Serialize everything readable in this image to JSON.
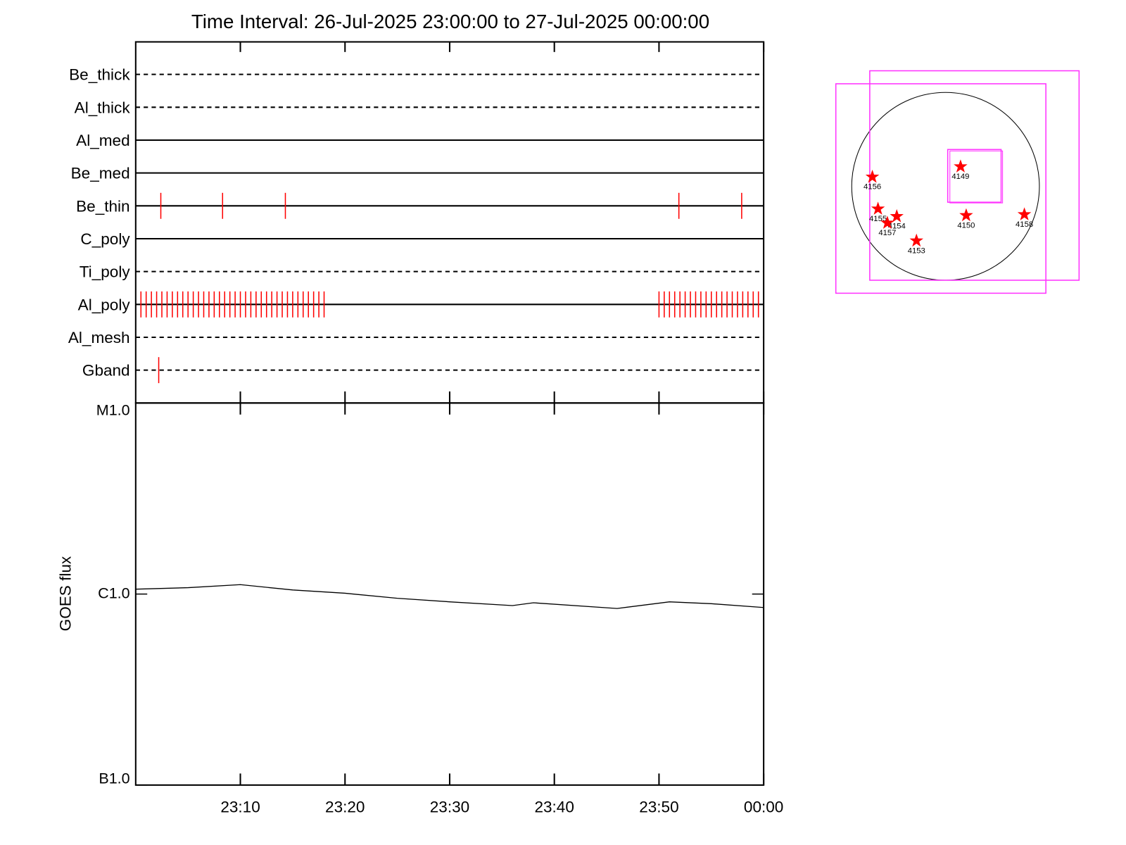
{
  "chart_data": [
    {
      "type": "event",
      "title": "Time Interval: 26-Jul-2025 23:00:00 to 27-Jul-2025 00:00:00",
      "xlim": [
        "23:00",
        "00:00"
      ],
      "event_color": "#ff0000",
      "filters": [
        {
          "name": "Be_thick",
          "line": "dashed",
          "events": []
        },
        {
          "name": "Al_thick",
          "line": "dashed",
          "events": []
        },
        {
          "name": "Al_med",
          "line": "solid",
          "events": []
        },
        {
          "name": "Be_med",
          "line": "solid",
          "events": []
        },
        {
          "name": "Be_thin",
          "line": "solid",
          "events": [
            "23:02:24",
            "23:08:18",
            "23:14:18",
            "23:51:54",
            "23:57:54"
          ]
        },
        {
          "name": "C_poly",
          "line": "solid",
          "events": []
        },
        {
          "name": "Ti_poly",
          "line": "dashed",
          "events": []
        },
        {
          "name": "Al_poly",
          "line": "solid",
          "events": [
            "23:00:30",
            "23:01:00",
            "23:01:30",
            "23:02:00",
            "23:02:30",
            "23:03:00",
            "23:03:30",
            "23:04:00",
            "23:04:30",
            "23:05:00",
            "23:05:30",
            "23:06:00",
            "23:06:30",
            "23:07:00",
            "23:07:30",
            "23:08:00",
            "23:08:30",
            "23:09:00",
            "23:09:30",
            "23:10:00",
            "23:10:30",
            "23:11:00",
            "23:11:30",
            "23:12:00",
            "23:12:30",
            "23:13:00",
            "23:13:30",
            "23:14:00",
            "23:14:30",
            "23:15:00",
            "23:15:30",
            "23:16:00",
            "23:16:30",
            "23:17:00",
            "23:17:30",
            "23:18:00",
            "23:50:00",
            "23:50:30",
            "23:51:00",
            "23:51:30",
            "23:52:00",
            "23:52:30",
            "23:53:00",
            "23:53:30",
            "23:54:00",
            "23:54:30",
            "23:55:00",
            "23:55:30",
            "23:56:00",
            "23:56:30",
            "23:57:00",
            "23:57:30",
            "23:58:00",
            "23:58:30",
            "23:59:00",
            "23:59:30"
          ]
        },
        {
          "name": "Al_mesh",
          "line": "dashed",
          "events": []
        },
        {
          "name": "Gband",
          "line": "dashed",
          "events": [
            "23:02:12"
          ]
        }
      ]
    },
    {
      "type": "line",
      "ylabel": "GOES flux",
      "log_y": true,
      "x": [
        "23:00",
        "23:05",
        "23:10",
        "23:15",
        "23:20",
        "23:25",
        "23:30",
        "23:36",
        "23:38",
        "23:46",
        "23:51",
        "23:55",
        "00:00"
      ],
      "series": [
        {
          "color": "#000000",
          "values": [
            1.06e-06,
            1.08e-06,
            1.12e-06,
            1.05e-06,
            1.01e-06,
            9.5e-07,
            9.1e-07,
            8.7e-07,
            9e-07,
            8.4e-07,
            9.1e-07,
            8.9e-07,
            8.5e-07
          ]
        }
      ],
      "xlim": [
        "23:00",
        "00:00"
      ],
      "xticks": [
        "23:10",
        "23:20",
        "23:30",
        "23:40",
        "23:50",
        "00:00"
      ],
      "ylim": [
        1e-07,
        1e-05
      ],
      "yticks": [
        {
          "value": 1e-05,
          "label": "M1.0"
        },
        {
          "value": 1e-06,
          "label": "C1.0"
        },
        {
          "value": 1e-07,
          "label": "B1.0"
        }
      ]
    },
    {
      "type": "map",
      "color": "#ff0000",
      "regions": [
        {
          "label": "4149",
          "x": 0.16,
          "y": 0.21
        },
        {
          "label": "4156",
          "x": -0.78,
          "y": 0.1
        },
        {
          "label": "4155",
          "x": -0.72,
          "y": -0.24
        },
        {
          "label": "4154",
          "x": -0.52,
          "y": -0.32
        },
        {
          "label": "4157",
          "x": -0.62,
          "y": -0.39
        },
        {
          "label": "4153",
          "x": -0.31,
          "y": -0.58
        },
        {
          "label": "4150",
          "x": 0.22,
          "y": -0.31
        },
        {
          "label": "4158",
          "x": 0.84,
          "y": -0.3
        }
      ]
    }
  ]
}
